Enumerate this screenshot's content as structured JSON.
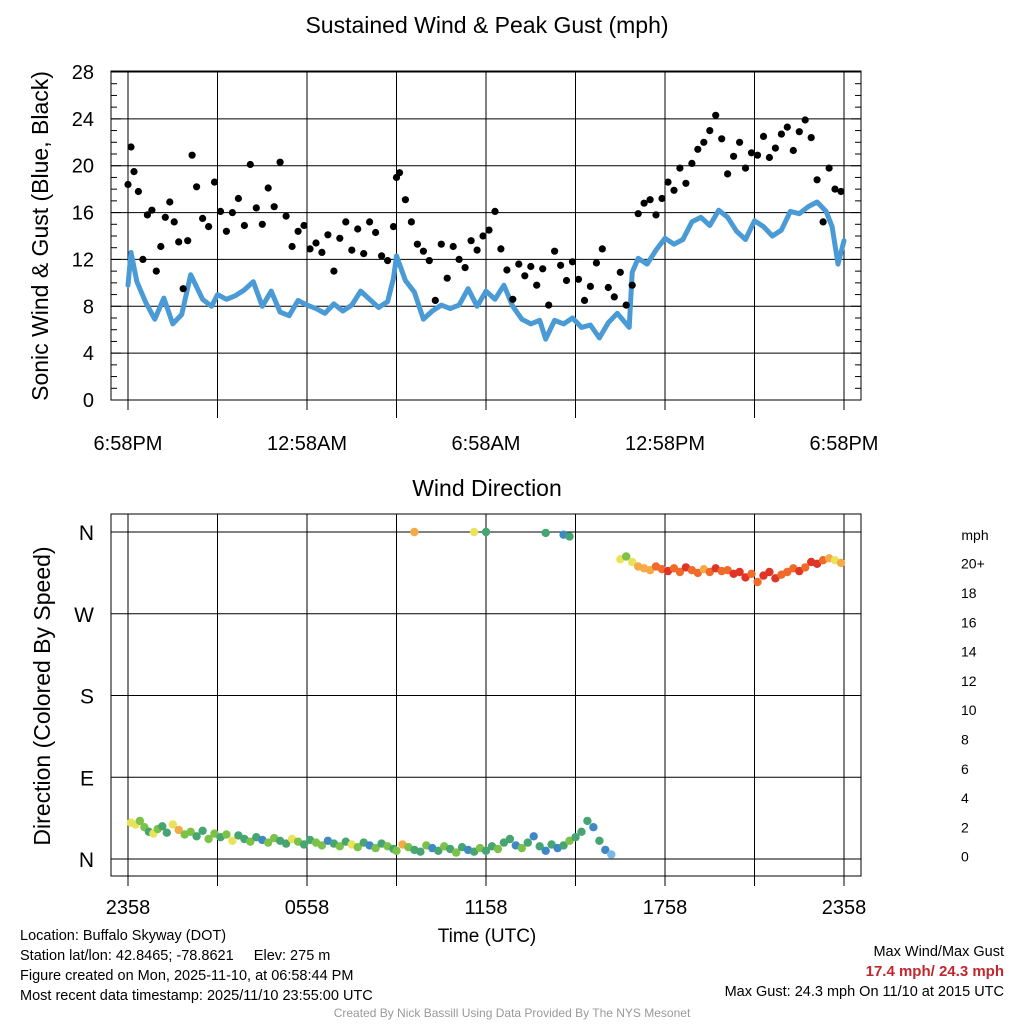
{
  "chart_data": [
    {
      "type": "scatter",
      "title": "Sustained Wind & Peak Gust (mph)",
      "ylabel": "Sonic Wind & Gust (Blue, Black)",
      "xlabel": "",
      "ylim": [
        0,
        28
      ],
      "yticks": [
        0,
        4,
        8,
        12,
        16,
        20,
        24,
        28
      ],
      "xlim": [
        0,
        24
      ],
      "xticks": [
        0,
        6,
        12,
        18,
        24
      ],
      "xtick_labels": [
        "6:58PM",
        "12:58AM",
        "6:58AM",
        "12:58PM",
        "6:58PM"
      ],
      "grid": true,
      "series": [
        {
          "name": "Sustained wind",
          "color": "#4a9ad6",
          "style": "line",
          "x": [
            0,
            0.1,
            0.3,
            0.6,
            0.9,
            1.2,
            1.5,
            1.8,
            2.1,
            2.5,
            2.8,
            3.0,
            3.3,
            3.6,
            3.9,
            4.2,
            4.5,
            4.8,
            5.1,
            5.4,
            5.7,
            6.0,
            6.3,
            6.6,
            6.9,
            7.2,
            7.5,
            7.8,
            8.1,
            8.4,
            8.7,
            8.9,
            9.0,
            9.3,
            9.6,
            9.9,
            10.2,
            10.5,
            10.8,
            11.1,
            11.4,
            11.7,
            12.0,
            12.3,
            12.6,
            12.9,
            13.2,
            13.5,
            13.8,
            14.0,
            14.3,
            14.6,
            14.9,
            15.2,
            15.5,
            15.8,
            16.1,
            16.4,
            16.8,
            16.9,
            17.1,
            17.4,
            17.7,
            18.0,
            18.3,
            18.6,
            18.9,
            19.2,
            19.5,
            19.8,
            20.1,
            20.4,
            20.7,
            21.0,
            21.3,
            21.6,
            21.9,
            22.2,
            22.5,
            22.8,
            23.1,
            23.4,
            23.6,
            23.8,
            24.0
          ],
          "values": [
            9.8,
            12.6,
            10.1,
            8.3,
            6.9,
            8.7,
            6.5,
            7.3,
            10.7,
            8.6,
            8.0,
            9.0,
            8.6,
            8.9,
            9.4,
            10.1,
            8.0,
            9.3,
            7.5,
            7.2,
            8.5,
            8.1,
            7.8,
            7.4,
            8.2,
            7.6,
            8.1,
            9.3,
            8.6,
            7.9,
            8.4,
            10.4,
            12.3,
            10.2,
            9.2,
            6.9,
            7.6,
            8.1,
            7.8,
            8.1,
            9.5,
            8.0,
            9.3,
            8.6,
            9.8,
            8.0,
            6.9,
            6.5,
            6.8,
            5.2,
            6.8,
            6.5,
            7.0,
            6.2,
            6.4,
            5.3,
            6.6,
            7.4,
            6.2,
            10.9,
            12.1,
            11.6,
            12.8,
            13.8,
            13.3,
            13.7,
            15.2,
            15.6,
            14.9,
            16.2,
            15.6,
            14.4,
            13.7,
            15.3,
            14.8,
            14.0,
            14.5,
            16.1,
            15.9,
            16.5,
            16.9,
            16.1,
            14.8,
            11.6,
            13.6
          ]
        },
        {
          "name": "Peak gust",
          "color": "#000000",
          "style": "points",
          "x": [
            0,
            0.1,
            0.2,
            0.35,
            0.5,
            0.65,
            0.8,
            0.95,
            1.1,
            1.25,
            1.4,
            1.55,
            1.7,
            1.85,
            2.0,
            2.15,
            2.3,
            2.5,
            2.7,
            2.9,
            3.1,
            3.3,
            3.5,
            3.7,
            3.9,
            4.1,
            4.3,
            4.5,
            4.7,
            4.9,
            5.1,
            5.3,
            5.5,
            5.7,
            5.9,
            6.1,
            6.3,
            6.5,
            6.7,
            6.9,
            7.1,
            7.3,
            7.5,
            7.7,
            7.9,
            8.1,
            8.3,
            8.5,
            8.7,
            8.9,
            9.0,
            9.1,
            9.3,
            9.5,
            9.7,
            9.9,
            10.1,
            10.3,
            10.5,
            10.7,
            10.9,
            11.1,
            11.3,
            11.5,
            11.7,
            11.9,
            12.1,
            12.3,
            12.5,
            12.7,
            12.9,
            13.1,
            13.3,
            13.5,
            13.7,
            13.9,
            14.1,
            14.3,
            14.5,
            14.7,
            14.9,
            15.1,
            15.3,
            15.5,
            15.7,
            15.9,
            16.1,
            16.3,
            16.5,
            16.7,
            16.9,
            17.1,
            17.3,
            17.5,
            17.7,
            17.9,
            18.1,
            18.3,
            18.5,
            18.7,
            18.9,
            19.1,
            19.3,
            19.5,
            19.7,
            19.9,
            20.1,
            20.3,
            20.5,
            20.7,
            20.9,
            21.1,
            21.3,
            21.5,
            21.7,
            21.9,
            22.1,
            22.3,
            22.5,
            22.7,
            22.9,
            23.1,
            23.3,
            23.5,
            23.7,
            23.9
          ],
          "values": [
            18.4,
            21.6,
            19.5,
            17.8,
            12.0,
            15.8,
            16.2,
            11.0,
            13.1,
            15.6,
            16.9,
            15.2,
            13.5,
            9.5,
            13.6,
            20.9,
            18.2,
            15.5,
            14.8,
            18.6,
            16.1,
            14.4,
            16.0,
            17.2,
            14.9,
            20.1,
            16.4,
            15.0,
            18.1,
            16.5,
            20.3,
            15.7,
            13.1,
            14.4,
            14.9,
            12.9,
            13.4,
            12.6,
            14.1,
            11.0,
            13.8,
            15.2,
            12.8,
            14.6,
            12.5,
            15.2,
            14.3,
            12.3,
            11.9,
            14.8,
            19.0,
            19.4,
            17.1,
            15.2,
            13.3,
            12.7,
            11.9,
            8.5,
            13.3,
            10.4,
            13.1,
            12.0,
            11.3,
            13.6,
            12.8,
            14.0,
            14.5,
            16.1,
            12.9,
            11.1,
            8.6,
            11.6,
            10.6,
            11.4,
            9.8,
            11.2,
            8.1,
            12.7,
            11.5,
            10.2,
            11.8,
            10.3,
            8.5,
            9.7,
            11.7,
            12.9,
            9.6,
            8.8,
            10.9,
            8.1,
            9.8,
            15.9,
            16.8,
            17.1,
            15.8,
            17.2,
            18.6,
            17.9,
            19.8,
            18.5,
            20.2,
            21.4,
            22.0,
            23.0,
            24.3,
            22.3,
            19.3,
            20.8,
            22.0,
            19.8,
            21.1,
            20.9,
            22.5,
            20.7,
            21.5,
            22.7,
            23.3,
            21.3,
            22.9,
            23.9,
            22.4,
            18.8,
            15.2,
            19.8,
            18.0,
            17.8
          ]
        }
      ]
    },
    {
      "type": "scatter",
      "title": "Wind Direction",
      "ylabel": "Direction (Colored By Speed)",
      "xlabel": "Time (UTC)",
      "ylim": [
        0,
        360
      ],
      "yticks": [
        0,
        90,
        180,
        270,
        360
      ],
      "ytick_labels": [
        "N",
        "E",
        "S",
        "W",
        "N"
      ],
      "xlim": [
        0,
        24
      ],
      "xticks": [
        0,
        3,
        6,
        9,
        12,
        15,
        18,
        21,
        24
      ],
      "xtick_labels": [
        "2358",
        "0558",
        "1158",
        "1758",
        "2358"
      ],
      "xtick_label_hours": [
        0,
        6,
        12,
        18,
        24
      ],
      "grid": true,
      "series": [
        {
          "name": "Direction",
          "x": [
            0.1,
            0.25,
            0.4,
            0.55,
            0.7,
            0.85,
            1.0,
            1.15,
            1.3,
            1.5,
            1.7,
            1.9,
            2.1,
            2.3,
            2.5,
            2.7,
            2.9,
            3.1,
            3.3,
            3.5,
            3.7,
            3.9,
            4.1,
            4.3,
            4.5,
            4.7,
            4.9,
            5.1,
            5.3,
            5.5,
            5.7,
            5.9,
            6.1,
            6.3,
            6.5,
            6.7,
            6.9,
            7.1,
            7.3,
            7.5,
            7.7,
            7.9,
            8.1,
            8.3,
            8.5,
            8.7,
            8.9,
            9.0,
            9.2,
            9.4,
            9.6,
            9.8,
            10.0,
            10.2,
            10.4,
            10.6,
            10.8,
            11.0,
            11.2,
            11.4,
            11.6,
            11.8,
            12.0,
            12.2,
            12.4,
            12.6,
            12.8,
            13.0,
            13.2,
            13.4,
            13.6,
            13.8,
            14.0,
            14.2,
            14.4,
            14.6,
            14.8,
            15.0,
            15.2,
            15.4,
            15.6,
            15.8,
            16.0,
            16.2,
            9.6,
            11.6,
            12.0,
            14.0,
            14.6,
            14.8,
            16.5,
            16.7,
            16.9,
            17.1,
            17.3,
            17.5,
            17.7,
            17.9,
            18.1,
            18.3,
            18.5,
            18.7,
            18.9,
            19.1,
            19.3,
            19.5,
            19.7,
            19.9,
            20.1,
            20.3,
            20.5,
            20.7,
            20.9,
            21.1,
            21.3,
            21.5,
            21.7,
            21.9,
            22.1,
            22.3,
            22.5,
            22.7,
            22.9,
            23.1,
            23.3,
            23.5,
            23.7,
            23.9
          ],
          "values": [
            40,
            38,
            42,
            35,
            30,
            28,
            33,
            36,
            29,
            38,
            32,
            27,
            30,
            25,
            31,
            22,
            28,
            24,
            27,
            20,
            26,
            22,
            19,
            24,
            21,
            18,
            23,
            20,
            17,
            22,
            19,
            16,
            21,
            18,
            15,
            20,
            17,
            14,
            19,
            16,
            13,
            18,
            15,
            12,
            17,
            14,
            11,
            9,
            16,
            13,
            10,
            8,
            15,
            12,
            9,
            14,
            11,
            7,
            13,
            10,
            8,
            12,
            9,
            14,
            11,
            18,
            22,
            15,
            12,
            18,
            25,
            14,
            9,
            16,
            12,
            15,
            20,
            24,
            30,
            42,
            35,
            20,
            10,
            5,
            360,
            360,
            360,
            359,
            357,
            355,
            330,
            333,
            327,
            322,
            320,
            318,
            322,
            319,
            317,
            320,
            316,
            321,
            318,
            315,
            319,
            316,
            320,
            317,
            318,
            314,
            316,
            310,
            314,
            305,
            312,
            316,
            309,
            313,
            316,
            320,
            317,
            321,
            327,
            325,
            329,
            331,
            329,
            326
          ],
          "speed": [
            11,
            10,
            9,
            8,
            7,
            10,
            9,
            7,
            6,
            10,
            12,
            8,
            9,
            7,
            6,
            9,
            8,
            7,
            9,
            10,
            7,
            6,
            8,
            7,
            5,
            9,
            8,
            7,
            6,
            10,
            8,
            7,
            6,
            9,
            8,
            5,
            7,
            9,
            6,
            10,
            8,
            7,
            5,
            8,
            6,
            9,
            7,
            8,
            12,
            9,
            7,
            6,
            8,
            5,
            7,
            9,
            6,
            8,
            7,
            5,
            6,
            8,
            7,
            6,
            8,
            6,
            7,
            5,
            8,
            6,
            4,
            7,
            5,
            6,
            4,
            6,
            8,
            6,
            6,
            7,
            5,
            6,
            4,
            3,
            12,
            10,
            7,
            6,
            4,
            7,
            10,
            9,
            11,
            12,
            13,
            12,
            14,
            15,
            16,
            15,
            14,
            16,
            15,
            14,
            13,
            15,
            16,
            14,
            15,
            16,
            17,
            16,
            15,
            14,
            16,
            17,
            16,
            15,
            14,
            15,
            16,
            15,
            16,
            17,
            14,
            12,
            11,
            13
          ]
        }
      ],
      "colorbar": {
        "title": "mph",
        "labels": [
          "20+",
          "18",
          "16",
          "14",
          "12",
          "10",
          "8",
          "6",
          "4",
          "2",
          "0"
        ],
        "colors": [
          "#8b1a1a",
          "#c1272d",
          "#e03526",
          "#f06a2a",
          "#f6a947",
          "#e8e35a",
          "#7cc248",
          "#47a572",
          "#3f88c5",
          "#7bb8e6",
          "#b9e4f7"
        ]
      }
    }
  ],
  "footer": {
    "location": "Location: Buffalo Skyway (DOT)",
    "station": "Station lat/lon: 42.8465; -78.8621",
    "elevation": "Elev: 275 m",
    "created": "Figure created on Mon, 2025-11-10, at 06:58:44 PM",
    "recent": "Most recent data timestamp: 2025/11/10 23:55:00 UTC",
    "max_title": "Max Wind/Max Gust",
    "max_values": "17.4 mph/ 24.3 mph",
    "max_gust": "Max Gust: 24.3 mph On 11/10 at 2015 UTC",
    "credit": "Created By Nick Bassill Using Data Provided By The NYS Mesonet"
  }
}
